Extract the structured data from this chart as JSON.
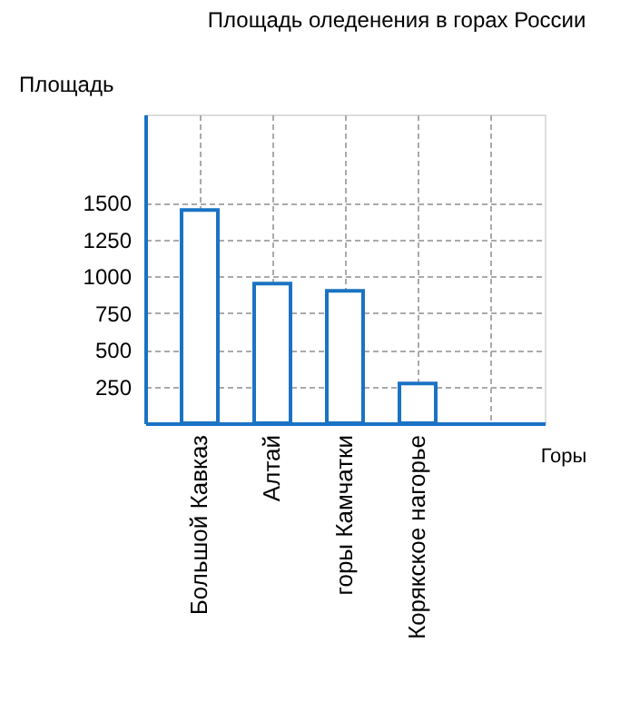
{
  "chart_data": {
    "type": "bar",
    "title": "Площадь оледенения в горах России",
    "xlabel": "Горы",
    "ylabel": "Площадь",
    "categories": [
      "Большой Кавказ",
      "Алтай",
      "горы Камчатки",
      "Корякское нагорье"
    ],
    "values": [
      1450,
      950,
      900,
      270
    ],
    "color": "#1a73c4",
    "ylim": [
      0,
      2100
    ],
    "yticks": [
      250,
      500,
      750,
      1000,
      1250,
      1500
    ],
    "grid": true
  }
}
